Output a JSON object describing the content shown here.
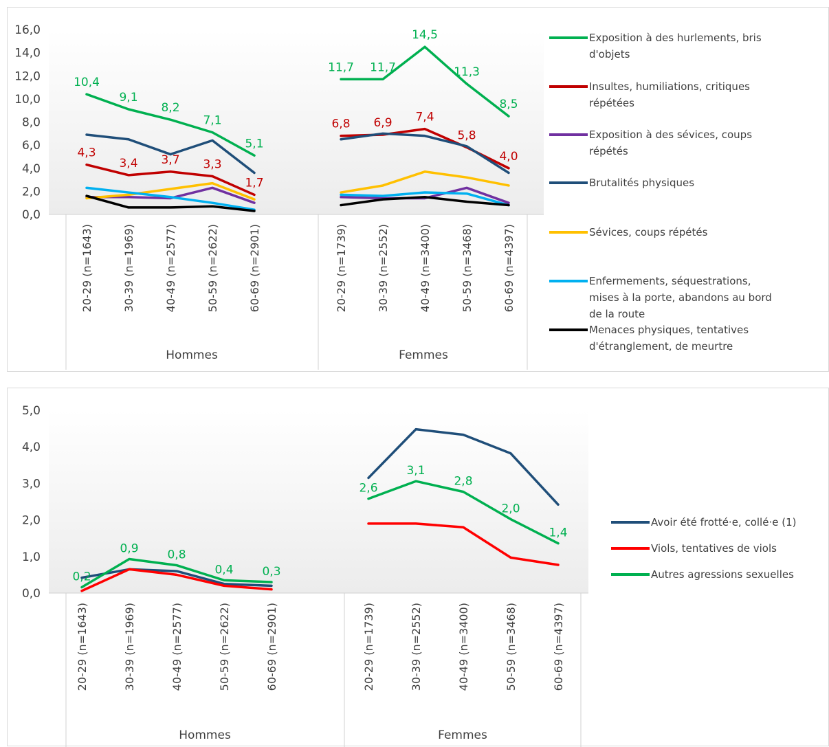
{
  "chart_data": [
    {
      "type": "line",
      "ylim": [
        0,
        16
      ],
      "yticks": [
        "0,0",
        "2,0",
        "4,0",
        "6,0",
        "8,0",
        "10,0",
        "12,0",
        "14,0",
        "16,0"
      ],
      "groups": [
        {
          "label": "Hommes",
          "categories": [
            "20-29 (n=1643)",
            "30-39 (n=1969)",
            "40-49 (n=2577)",
            "50-59 (n=2622)",
            "60-69 (n=2901)"
          ]
        },
        {
          "label": "Femmes",
          "categories": [
            "20-29 (n=1739)",
            "30-39 (n=2552)",
            "40-49 (n=3400)",
            "50-59 (n=3468)",
            "60-69 (n=4397)"
          ]
        }
      ],
      "legend_position": "right",
      "grid": false,
      "series": [
        {
          "name": "Exposition à des hurlements, bris d'objets",
          "color": "#00b050",
          "values": [
            [
              10.4,
              9.1,
              8.2,
              7.1,
              5.1
            ],
            [
              11.7,
              11.7,
              14.5,
              11.3,
              8.5
            ]
          ],
          "labels": [
            [
              "10,4",
              "9,1",
              "8,2",
              "7,1",
              "5,1"
            ],
            [
              "11,7",
              "11,7",
              "14,5",
              "11,3",
              "8,5"
            ]
          ]
        },
        {
          "name": "Insultes, humiliations, critiques répétées",
          "color": "#c00000",
          "values": [
            [
              4.3,
              3.4,
              3.7,
              3.3,
              1.7
            ],
            [
              6.8,
              6.9,
              7.4,
              5.8,
              4.0
            ]
          ],
          "labels": [
            [
              "4,3",
              "3,4",
              "3,7",
              "3,3",
              "1,7"
            ],
            [
              "6,8",
              "6,9",
              "7,4",
              "5,8",
              "4,0"
            ]
          ]
        },
        {
          "name": "Exposition à des sévices, coups répétés",
          "color": "#7030a0",
          "values": [
            [
              1.5,
              1.5,
              1.4,
              2.3,
              1.0
            ],
            [
              1.5,
              1.4,
              1.4,
              2.3,
              1.0
            ]
          ]
        },
        {
          "name": "Brutalités physiques",
          "color": "#1f4e79",
          "values": [
            [
              6.9,
              6.5,
              5.2,
              6.4,
              3.6
            ],
            [
              6.5,
              7.0,
              6.8,
              5.9,
              3.6
            ]
          ]
        },
        {
          "name": "Sévices, coups répétés",
          "color": "#ffc000",
          "values": [
            [
              1.4,
              1.7,
              2.2,
              2.7,
              1.3
            ],
            [
              1.9,
              2.5,
              3.7,
              3.2,
              2.5
            ]
          ]
        },
        {
          "name": "Enfermements, séquestrations, mises à la porte, abandons au bord de la route",
          "color": "#00b0f0",
          "values": [
            [
              2.3,
              1.9,
              1.5,
              1.0,
              0.4
            ],
            [
              1.7,
              1.6,
              1.9,
              1.8,
              0.8
            ]
          ]
        },
        {
          "name": "Menaces physiques, tentatives d'étranglement, de meurtre",
          "color": "#000000",
          "values": [
            [
              1.6,
              0.6,
              0.6,
              0.7,
              0.3
            ],
            [
              0.8,
              1.3,
              1.5,
              1.1,
              0.8
            ]
          ]
        }
      ]
    },
    {
      "type": "line",
      "ylim": [
        0,
        5
      ],
      "yticks": [
        "0,0",
        "1,0",
        "2,0",
        "3,0",
        "4,0",
        "5,0"
      ],
      "groups": [
        {
          "label": "Hommes",
          "categories": [
            "20-29 (n=1643)",
            "30-39 (n=1969)",
            "40-49 (n=2577)",
            "50-59 (n=2622)",
            "60-69 (n=2901)"
          ]
        },
        {
          "label": "Femmes",
          "categories": [
            "20-29 (n=1739)",
            "30-39 (n=2552)",
            "40-49 (n=3400)",
            "50-59 (n=3468)",
            "60-69 (n=4397)"
          ]
        }
      ],
      "legend_position": "right",
      "grid": false,
      "series": [
        {
          "name": "Avoir été frotté·e, collé·e (1)",
          "color": "#1f4e79",
          "values": [
            [
              0.42,
              0.65,
              0.6,
              0.25,
              0.2
            ],
            [
              3.15,
              4.48,
              4.33,
              3.82,
              2.42
            ]
          ]
        },
        {
          "name": "Viols, tentatives de viols",
          "color": "#ff0000",
          "values": [
            [
              0.06,
              0.65,
              0.5,
              0.2,
              0.1
            ],
            [
              1.9,
              1.9,
              1.8,
              0.97,
              0.77
            ]
          ]
        },
        {
          "name": "Autres agressions sexuelles",
          "color": "#00b050",
          "values": [
            [
              0.16,
              0.93,
              0.76,
              0.35,
              0.3
            ],
            [
              2.58,
              3.06,
              2.77,
              2.02,
              1.36
            ]
          ],
          "labels": [
            [
              "0,2",
              "0,9",
              "0,8",
              "0,4",
              "0,3"
            ],
            [
              "2,6",
              "3,1",
              "2,8",
              "2,0",
              "1,4"
            ]
          ]
        }
      ]
    }
  ]
}
